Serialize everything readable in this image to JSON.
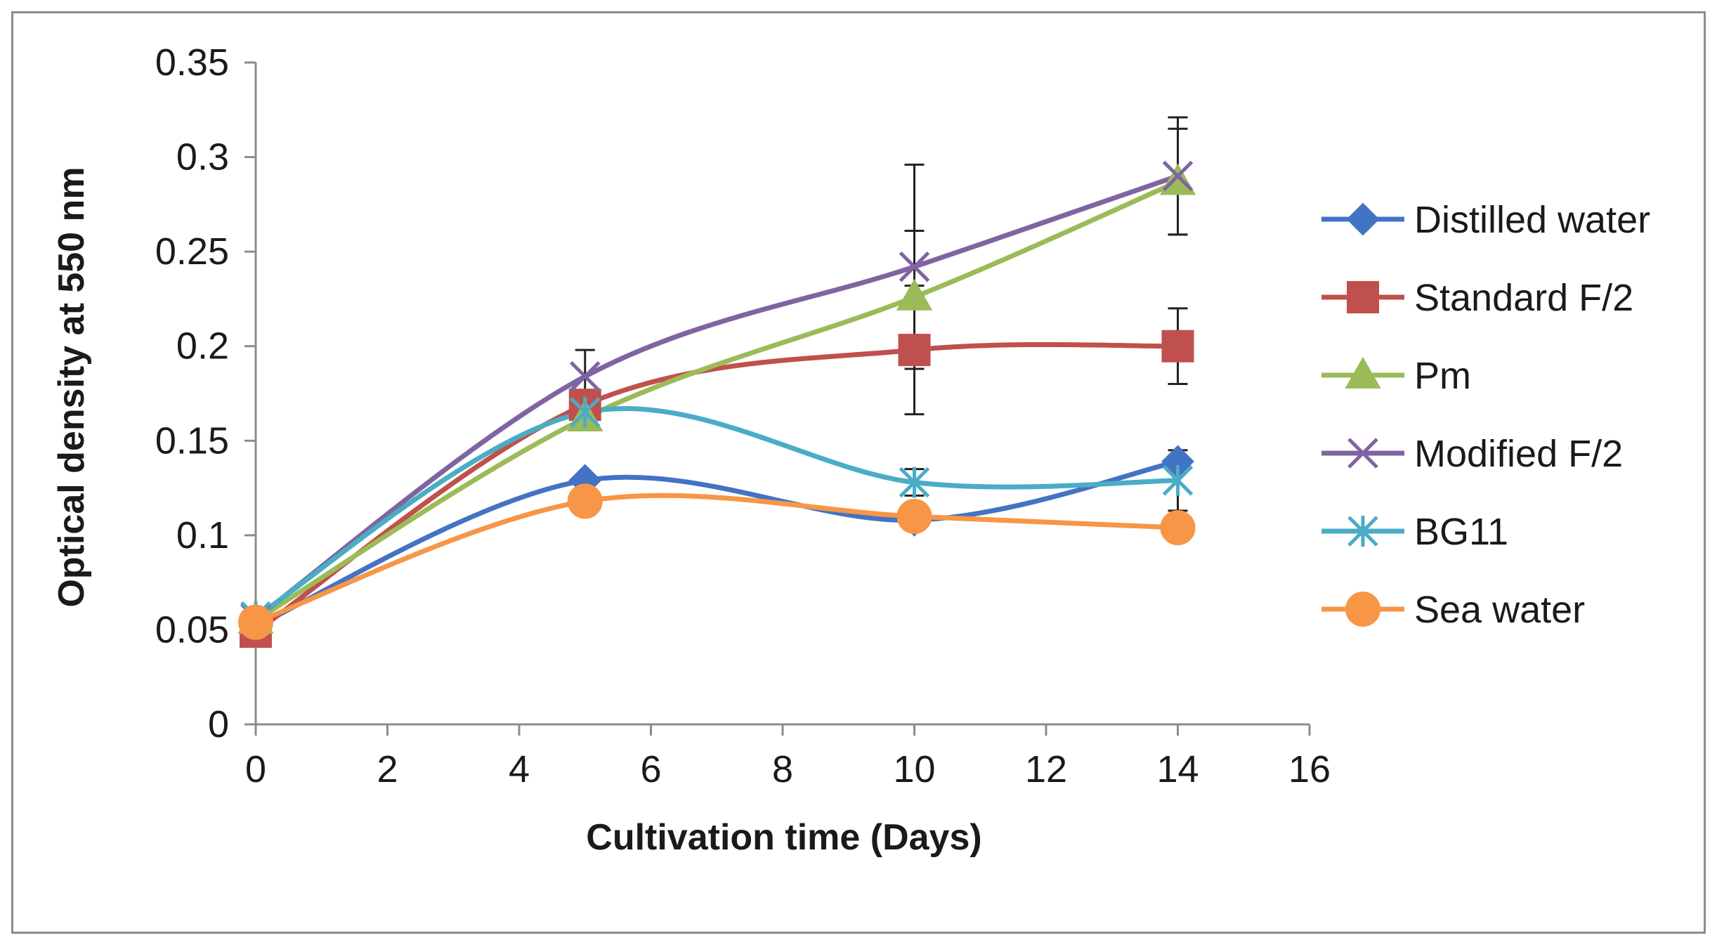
{
  "chart_data": {
    "type": "line",
    "title": "",
    "xlabel": "Cultivation time (Days)",
    "ylabel": "Optical density at 550 nm",
    "xlim": [
      0,
      16
    ],
    "ylim": [
      0,
      0.35
    ],
    "xticks": [
      0,
      2,
      4,
      6,
      8,
      10,
      12,
      14,
      16
    ],
    "yticks": [
      0,
      0.05,
      0.1,
      0.15,
      0.2,
      0.25,
      0.3,
      0.35
    ],
    "xtick_labels": [
      "0",
      "2",
      "4",
      "6",
      "8",
      "10",
      "12",
      "14",
      "16"
    ],
    "ytick_labels": [
      "0",
      "0.05",
      "0.1",
      "0.15",
      "0.2",
      "0.25",
      "0.3",
      "0.35"
    ],
    "grid": false,
    "legend_position": "right",
    "x": [
      0,
      5,
      10,
      14
    ],
    "series": [
      {
        "name": "Distilled water",
        "color": "#4472C4",
        "marker": "diamond",
        "values": [
          0.052,
          0.129,
          0.108,
          0.139
        ],
        "errors": [
          0,
          0,
          0,
          0
        ]
      },
      {
        "name": "Standard F/2",
        "color": "#C0504D",
        "marker": "square",
        "values": [
          0.049,
          0.169,
          0.198,
          0.2
        ],
        "errors": [
          0,
          0.005,
          0.034,
          0.02
        ]
      },
      {
        "name": "Pm",
        "color": "#9BBB59",
        "marker": "triangle",
        "values": [
          0.055,
          0.162,
          0.226,
          0.287
        ],
        "errors": [
          0,
          0,
          0.035,
          0.028
        ]
      },
      {
        "name": "Modified F/2",
        "color": "#8064A2",
        "marker": "x",
        "values": [
          0.056,
          0.184,
          0.242,
          0.29
        ],
        "errors": [
          0,
          0.014,
          0.054,
          0.031
        ]
      },
      {
        "name": "BG11",
        "color": "#4BACC6",
        "marker": "asterisk",
        "values": [
          0.057,
          0.165,
          0.128,
          0.129
        ],
        "errors": [
          0,
          0.004,
          0.007,
          0.016
        ]
      },
      {
        "name": "Sea water",
        "color": "#F79646",
        "marker": "circle",
        "values": [
          0.054,
          0.118,
          0.11,
          0.104
        ],
        "errors": [
          0,
          0,
          0,
          0
        ]
      }
    ]
  }
}
